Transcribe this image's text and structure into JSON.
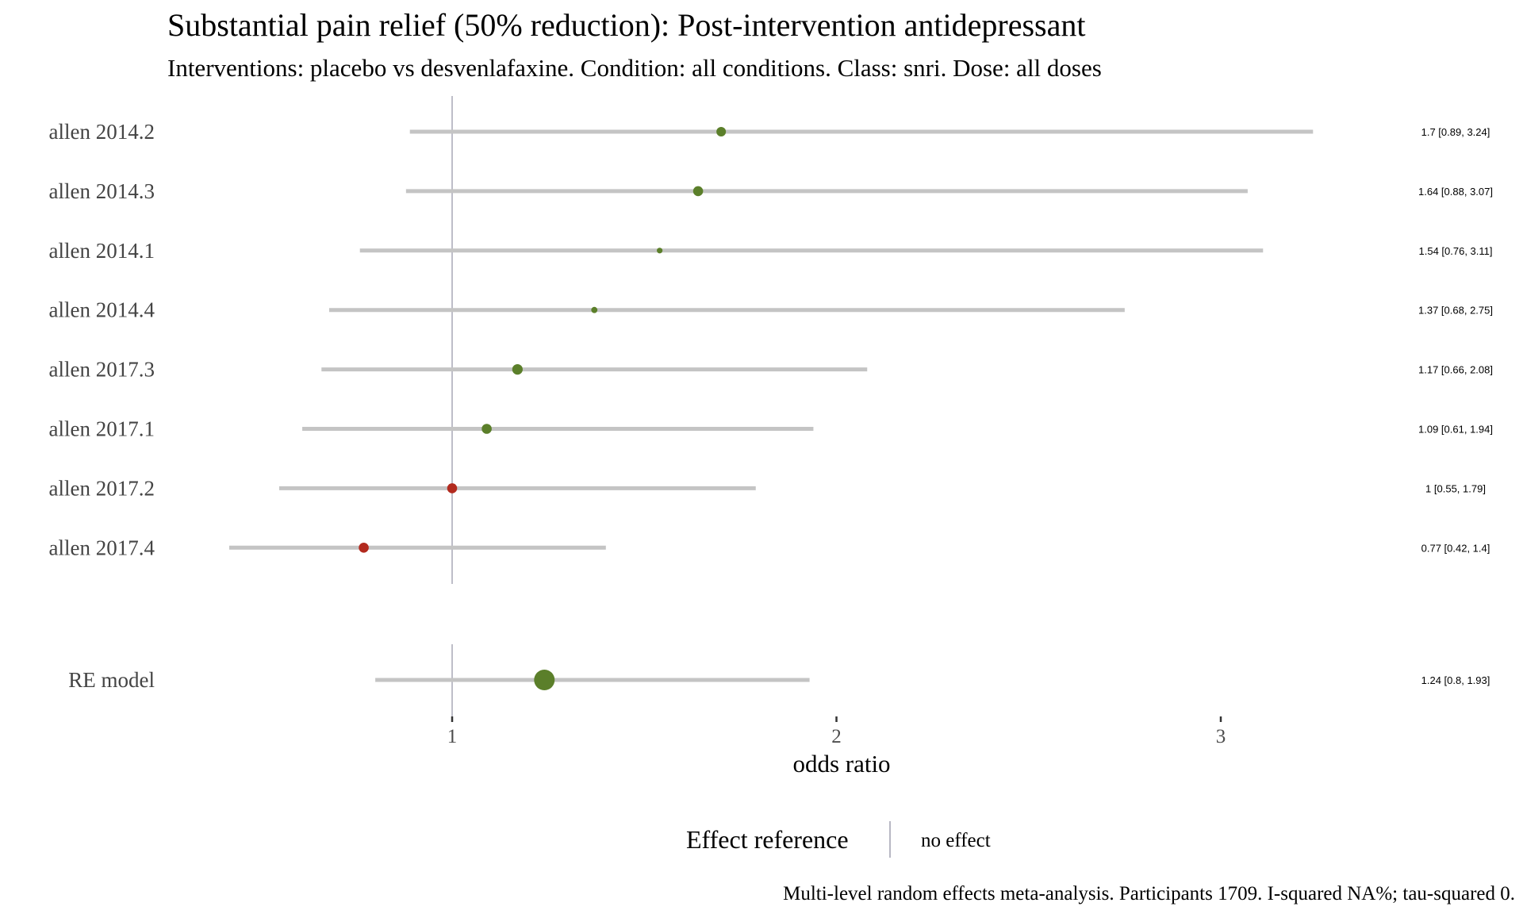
{
  "title": "Substantial pain relief (50% reduction): Post-intervention antidepressant",
  "subtitle": "Interventions: placebo vs desvenlafaxine. Condition: all conditions. Class: snri. Dose: all doses",
  "caption": "Multi-level random effects meta-analysis. Participants 1709. I-squared NA%; tau-squared 0.",
  "legend": {
    "title": "Effect reference",
    "item": "no effect",
    "line_color": "#9a9aaa"
  },
  "colors": {
    "favours_intervention": "#5b7f2a",
    "no_benefit": "#b22a1e",
    "ci_bar": "#c4c4c4",
    "reference_line": "#9a9aaa"
  },
  "chart_data": {
    "type": "forest",
    "xlabel": "odds ratio",
    "xlim": [
      0.41,
      3.5
    ],
    "xticks": [
      1,
      2,
      3
    ],
    "reference_value": 1,
    "studies": [
      {
        "label": "allen 2014.2",
        "or": 1.7,
        "lower": 0.89,
        "upper": 3.24,
        "ci_text": "1.7 [0.89, 3.24]",
        "color": "green",
        "weight": 1.0
      },
      {
        "label": "allen 2014.3",
        "or": 1.64,
        "lower": 0.88,
        "upper": 3.07,
        "ci_text": "1.64 [0.88, 3.07]",
        "color": "green",
        "weight": 1.05
      },
      {
        "label": "allen 2014.1",
        "or": 1.54,
        "lower": 0.76,
        "upper": 3.11,
        "ci_text": "1.54 [0.76, 3.11]",
        "color": "green",
        "weight": 0.6
      },
      {
        "label": "allen 2014.4",
        "or": 1.37,
        "lower": 0.68,
        "upper": 2.75,
        "ci_text": "1.37 [0.68, 2.75]",
        "color": "green",
        "weight": 0.65
      },
      {
        "label": "allen 2017.3",
        "or": 1.17,
        "lower": 0.66,
        "upper": 2.08,
        "ci_text": "1.17 [0.66, 2.08]",
        "color": "green",
        "weight": 1.1
      },
      {
        "label": "allen 2017.1",
        "or": 1.09,
        "lower": 0.61,
        "upper": 1.94,
        "ci_text": "1.09 [0.61, 1.94]",
        "color": "green",
        "weight": 1.05
      },
      {
        "label": "allen 2017.2",
        "or": 1.0,
        "lower": 0.55,
        "upper": 1.79,
        "ci_text": "1 [0.55, 1.79]",
        "color": "red",
        "weight": 1.05
      },
      {
        "label": "allen 2017.4",
        "or": 0.77,
        "lower": 0.42,
        "upper": 1.4,
        "ci_text": "0.77 [0.42, 1.4]",
        "color": "red",
        "weight": 1.05
      }
    ],
    "pooled": {
      "label": "RE model",
      "or": 1.24,
      "lower": 0.8,
      "upper": 1.93,
      "ci_text": "1.24 [0.8, 1.93]",
      "color": "green"
    }
  }
}
